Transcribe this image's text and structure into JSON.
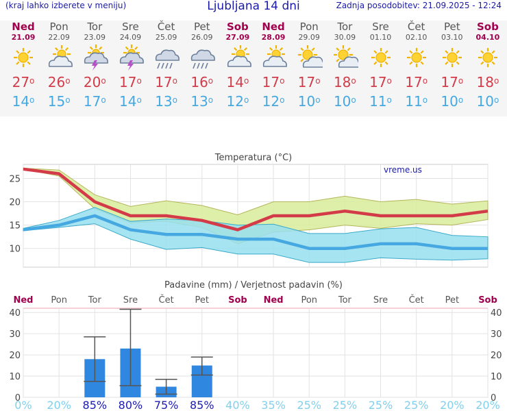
{
  "header": {
    "left_note": "(kraj lahko izberete v meniju)",
    "title": "Ljubljana 14 dni",
    "updated": "Zadnja posodobitev: 21.09.2025 - 12:24"
  },
  "colors": {
    "weekend": "#a0004d",
    "weekday": "#555555",
    "tmax": "#d33b48",
    "tmin": "#46a8e0",
    "bar": "#2f87e0",
    "prob_high": "#1b1bb0",
    "prob_low": "#7fd0ee",
    "envelope_max": "#d7ec9a",
    "envelope_min": "#98dff0"
  },
  "days": [
    {
      "name": "Ned",
      "date": "21.09",
      "icon": "sun-icon",
      "max": "27",
      "min": "14",
      "weekend": true
    },
    {
      "name": "Pon",
      "date": "22.09",
      "icon": "partly-cloudy-icon",
      "max": "26",
      "min": "15",
      "weekend": false
    },
    {
      "name": "Tor",
      "date": "23.09",
      "icon": "thunderstorm-icon",
      "max": "20",
      "min": "17",
      "weekend": false
    },
    {
      "name": "Sre",
      "date": "24.09",
      "icon": "thunderstorm-icon",
      "max": "17",
      "min": "14",
      "weekend": false
    },
    {
      "name": "Čet",
      "date": "25.09",
      "icon": "rain-cloud-icon",
      "max": "17",
      "min": "13",
      "weekend": false
    },
    {
      "name": "Pet",
      "date": "26.09",
      "icon": "rain-cloud-icon",
      "max": "16",
      "min": "13",
      "weekend": false
    },
    {
      "name": "Sob",
      "date": "27.09",
      "icon": "partly-cloudy-icon",
      "max": "14",
      "min": "12",
      "weekend": true
    },
    {
      "name": "Ned",
      "date": "28.09",
      "icon": "partly-cloudy-icon",
      "max": "17",
      "min": "12",
      "weekend": true
    },
    {
      "name": "Pon",
      "date": "29.09",
      "icon": "sun-cloud-icon",
      "max": "17",
      "min": "10",
      "weekend": false
    },
    {
      "name": "Tor",
      "date": "30.09",
      "icon": "sun-cloud-icon",
      "max": "18",
      "min": "10",
      "weekend": false
    },
    {
      "name": "Sre",
      "date": "01.10",
      "icon": "sun-icon",
      "max": "17",
      "min": "11",
      "weekend": false
    },
    {
      "name": "Čet",
      "date": "02.10",
      "icon": "sun-icon",
      "max": "17",
      "min": "11",
      "weekend": false
    },
    {
      "name": "Pet",
      "date": "03.10",
      "icon": "sun-icon",
      "max": "17",
      "min": "10",
      "weekend": false
    },
    {
      "name": "Sob",
      "date": "04.10",
      "icon": "sun-icon",
      "max": "18",
      "min": "10",
      "weekend": true
    }
  ],
  "chart_data": [
    {
      "type": "line",
      "title": "Temperatura (°C)",
      "watermark": "vreme.us",
      "ylim": [
        6,
        28
      ],
      "yticks": [
        10,
        15,
        20,
        25
      ],
      "grid": true,
      "series": [
        {
          "name": "max",
          "values": [
            27,
            26,
            20,
            17,
            17,
            16,
            14,
            17,
            17,
            18,
            17,
            17,
            17,
            18
          ]
        },
        {
          "name": "min",
          "values": [
            14,
            15,
            17,
            14,
            13,
            13,
            12,
            12,
            10,
            10,
            11,
            11,
            10,
            10
          ]
        }
      ],
      "envelopes": [
        {
          "upper": [
            27.2,
            26.8,
            21.5,
            19,
            20.2,
            19.2,
            17.2,
            20,
            20,
            21.2,
            20,
            20.5,
            19.5,
            20.2
          ],
          "lower": [
            27,
            25.5,
            18.5,
            15.5,
            15.8,
            14.5,
            11,
            13.5,
            14,
            15,
            14.3,
            15.3,
            15,
            16.2
          ]
        },
        {
          "upper": [
            14.3,
            16,
            18.8,
            15.8,
            16.3,
            16,
            15,
            15.2,
            13.2,
            13.2,
            14.2,
            14.5,
            12.8,
            12.5
          ],
          "lower": [
            13.8,
            14.5,
            15.3,
            12,
            9.8,
            10.2,
            8.8,
            8.8,
            7,
            7,
            8,
            7.7,
            7.5,
            7.8
          ]
        }
      ]
    },
    {
      "type": "bar",
      "title": "Padavine (mm) / Verjetnost padavin (%)",
      "categories": [
        "Ned",
        "Pon",
        "Tor",
        "Sre",
        "Čet",
        "Pet",
        "Sob",
        "Ned",
        "Pon",
        "Tor",
        "Sre",
        "Čet",
        "Pet",
        "Sob"
      ],
      "ylim": [
        0,
        42
      ],
      "yticks": [
        0,
        10,
        20,
        30,
        40
      ],
      "values": [
        0,
        0,
        18,
        23,
        5,
        15,
        0,
        0,
        0,
        0,
        0,
        0,
        0,
        0
      ],
      "error_low": [
        null,
        null,
        7.5,
        5.5,
        1.5,
        10.5,
        null,
        null,
        null,
        null,
        null,
        null,
        null,
        null
      ],
      "error_high": [
        null,
        null,
        28.5,
        41.5,
        8.5,
        19,
        null,
        null,
        null,
        null,
        null,
        null,
        null,
        null
      ],
      "probability": [
        "0%",
        "20%",
        "85%",
        "80%",
        "75%",
        "85%",
        "40%",
        "35%",
        "25%",
        "25%",
        "25%",
        "25%",
        "20%",
        "20%"
      ]
    }
  ]
}
